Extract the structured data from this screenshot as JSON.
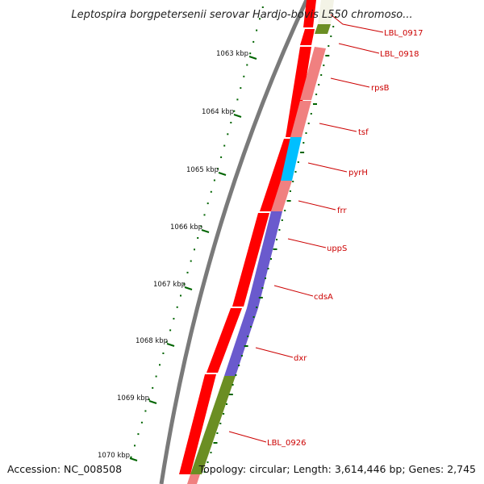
{
  "title": "Leptospira borgpetersenii serovar Hardjo-bovis L550 chromoso...",
  "footer": {
    "accession": "Accession: NC_008508",
    "summary": "Topology: circular; Length: 3,614,446 bp; Genes: 2,745"
  },
  "ruler": {
    "unit": "kbp",
    "labels": [
      "1063 kbp",
      "1064 kbp",
      "1065 kbp",
      "1066 kbp",
      "1067 kbp",
      "1068 kbp",
      "1069 kbp",
      "1070 kbp"
    ]
  },
  "genes": [
    {
      "name": "LBL_0917",
      "color": "#f3f3e6"
    },
    {
      "name": "LBL_0918",
      "color": "#6b8e23"
    },
    {
      "name": "rpsB",
      "color": "#f08080"
    },
    {
      "name": "tsf",
      "color": "#f08080"
    },
    {
      "name": "pyrH",
      "color": "#00bfff"
    },
    {
      "name": "frr",
      "color": "#f08080"
    },
    {
      "name": "uppS",
      "color": "#6a5acd"
    },
    {
      "name": "cdsA",
      "color": "#6a5acd"
    },
    {
      "name": "dxr",
      "color": "#6a5acd"
    },
    {
      "name": "LBL_0926",
      "color": "#6b8e23"
    }
  ],
  "colors": {
    "backbone": "#808080",
    "cds_strand": "#ff0000",
    "ruler_ticks": "#006400",
    "label_lines": "#cc0000"
  }
}
